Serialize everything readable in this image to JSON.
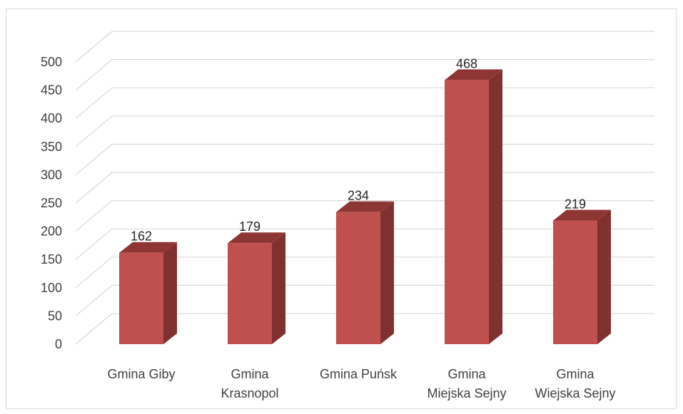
{
  "chart_data": {
    "type": "bar",
    "style": "3d-column",
    "categories": [
      [
        "Gmina Giby"
      ],
      [
        "Gmina",
        "Krasnopol"
      ],
      [
        "Gmina Puńsk"
      ],
      [
        "Gmina",
        "Miejska Sejny"
      ],
      [
        "Gmina",
        "Wiejska Sejny"
      ]
    ],
    "values": [
      162,
      179,
      234,
      468,
      219
    ],
    "ylim": [
      0,
      500
    ],
    "yticks": [
      0,
      50,
      100,
      150,
      200,
      250,
      300,
      350,
      400,
      450,
      500
    ],
    "grid": true,
    "legend": "none",
    "colors": {
      "bar_front": "#c0504d",
      "bar_side": "#7f3130",
      "bar_top": "#8e3633",
      "gridline": "#d9d9d9"
    }
  }
}
